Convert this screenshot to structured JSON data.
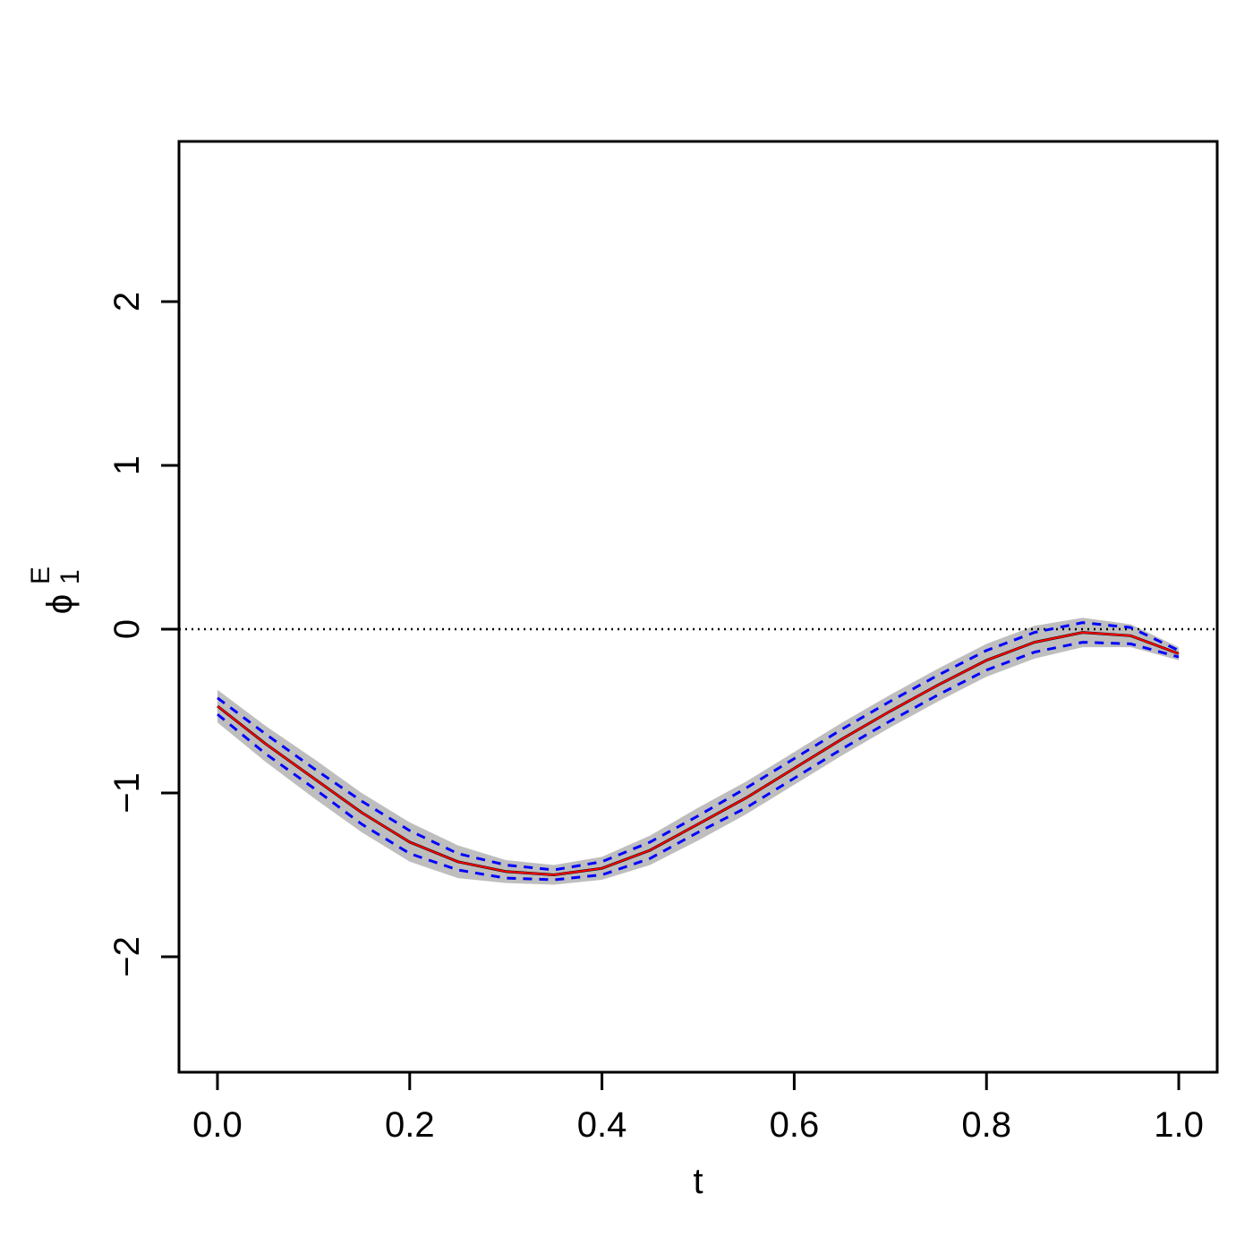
{
  "chart_data": {
    "type": "line",
    "xlabel": "t",
    "ylabel": {
      "base": "ϕ",
      "sub": "1",
      "sup": "E"
    },
    "x": [
      0,
      0.05,
      0.1,
      0.15,
      0.2,
      0.25,
      0.3,
      0.35,
      0.4,
      0.45,
      0.5,
      0.55,
      0.6,
      0.65,
      0.7,
      0.75,
      0.8,
      0.85,
      0.9,
      0.95,
      1.0
    ],
    "band": {
      "color": "#bebebe",
      "upper": [
        -0.37,
        -0.59,
        -0.79,
        -1.0,
        -1.18,
        -1.32,
        -1.41,
        -1.44,
        -1.39,
        -1.26,
        -1.09,
        -0.93,
        -0.75,
        -0.57,
        -0.4,
        -0.24,
        -0.09,
        0.02,
        0.07,
        0.03,
        -0.11
      ],
      "lower": [
        -0.57,
        -0.81,
        -1.03,
        -1.24,
        -1.42,
        -1.52,
        -1.55,
        -1.56,
        -1.53,
        -1.44,
        -1.29,
        -1.13,
        -0.95,
        -0.77,
        -0.6,
        -0.44,
        -0.29,
        -0.18,
        -0.11,
        -0.11,
        -0.19
      ]
    },
    "series": [
      {
        "color": "#000000",
        "width": 3,
        "values": [
          -0.47,
          -0.7,
          -0.91,
          -1.12,
          -1.3,
          -1.42,
          -1.48,
          -1.5,
          -1.46,
          -1.35,
          -1.19,
          -1.03,
          -0.85,
          -0.67,
          -0.5,
          -0.34,
          -0.19,
          -0.08,
          -0.02,
          -0.04,
          -0.15
        ]
      },
      {
        "color": "#ff0000",
        "width": 2,
        "values": [
          -0.47,
          -0.7,
          -0.91,
          -1.12,
          -1.3,
          -1.42,
          -1.48,
          -1.5,
          -1.46,
          -1.35,
          -1.19,
          -1.03,
          -0.85,
          -0.67,
          -0.5,
          -0.34,
          -0.19,
          -0.08,
          -0.02,
          -0.04,
          -0.15
        ]
      },
      {
        "color": "#0000ff",
        "width": 3,
        "dashed": true,
        "values": [
          -0.42,
          -0.64,
          -0.85,
          -1.05,
          -1.23,
          -1.37,
          -1.44,
          -1.47,
          -1.42,
          -1.3,
          -1.14,
          -0.97,
          -0.79,
          -0.61,
          -0.44,
          -0.28,
          -0.13,
          -0.02,
          0.04,
          0.01,
          -0.13
        ]
      },
      {
        "color": "#0000ff",
        "width": 3,
        "dashed": true,
        "values": [
          -0.52,
          -0.76,
          -0.97,
          -1.19,
          -1.37,
          -1.47,
          -1.52,
          -1.53,
          -1.5,
          -1.4,
          -1.24,
          -1.09,
          -0.91,
          -0.73,
          -0.56,
          -0.4,
          -0.25,
          -0.14,
          -0.08,
          -0.09,
          -0.17
        ]
      }
    ],
    "hline": 0,
    "xlim": [
      -0.04,
      1.04
    ],
    "ylim": [
      -2.705,
      2.978
    ],
    "xticks": [
      {
        "value": 0,
        "label": "0.0"
      },
      {
        "value": 0.2,
        "label": "0.2"
      },
      {
        "value": 0.4,
        "label": "0.4"
      },
      {
        "value": 0.6,
        "label": "0.6"
      },
      {
        "value": 0.8,
        "label": "0.8"
      },
      {
        "value": 1,
        "label": "1.0"
      }
    ],
    "yticks": [
      {
        "value": -2,
        "label": "−2"
      },
      {
        "value": -1,
        "label": "−1"
      },
      0,
      1,
      2
    ]
  }
}
